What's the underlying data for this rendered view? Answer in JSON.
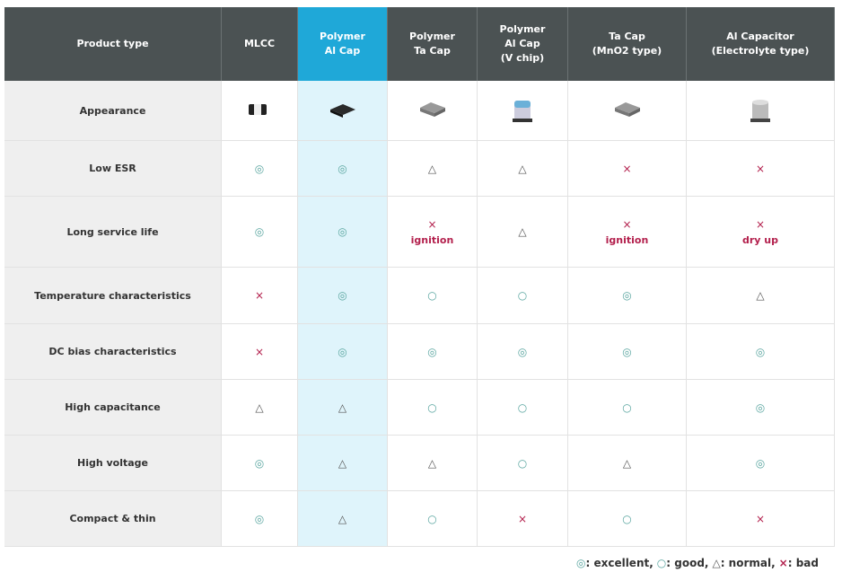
{
  "table": {
    "headers": [
      "Product type",
      "MLCC",
      "Polymer\nAl Cap",
      "Polymer\nTa Cap",
      "Polymer\nAl Cap\n(V chip)",
      "Ta Cap\n(MnO2 type)",
      "Al Capacitor\n(Electrolyte type)"
    ],
    "appearance_label": "Appearance",
    "rows": [
      {
        "label": "Low ESR",
        "cells": [
          {
            "mark": "◎"
          },
          {
            "mark": "◎"
          },
          {
            "mark": "△"
          },
          {
            "mark": "△"
          },
          {
            "mark": "×"
          },
          {
            "mark": "×"
          }
        ]
      },
      {
        "label": "Long service life",
        "cells": [
          {
            "mark": "◎"
          },
          {
            "mark": "◎"
          },
          {
            "mark": "×",
            "note": "ignition"
          },
          {
            "mark": "△"
          },
          {
            "mark": "×",
            "note": "ignition"
          },
          {
            "mark": "×",
            "note": "dry up"
          }
        ]
      },
      {
        "label": "Temperature characteristics",
        "cells": [
          {
            "mark": "×"
          },
          {
            "mark": "◎"
          },
          {
            "mark": "○"
          },
          {
            "mark": "○"
          },
          {
            "mark": "◎"
          },
          {
            "mark": "△"
          }
        ]
      },
      {
        "label": "DC bias characteristics",
        "cells": [
          {
            "mark": "×"
          },
          {
            "mark": "◎"
          },
          {
            "mark": "◎"
          },
          {
            "mark": "◎"
          },
          {
            "mark": "◎"
          },
          {
            "mark": "◎"
          }
        ]
      },
      {
        "label": "High capacitance",
        "cells": [
          {
            "mark": "△"
          },
          {
            "mark": "△"
          },
          {
            "mark": "○"
          },
          {
            "mark": "○"
          },
          {
            "mark": "○"
          },
          {
            "mark": "◎"
          }
        ]
      },
      {
        "label": "High voltage",
        "cells": [
          {
            "mark": "◎"
          },
          {
            "mark": "△"
          },
          {
            "mark": "△"
          },
          {
            "mark": "○"
          },
          {
            "mark": "△"
          },
          {
            "mark": "◎"
          }
        ]
      },
      {
        "label": "Compact & thin",
        "cells": [
          {
            "mark": "◎"
          },
          {
            "mark": "△"
          },
          {
            "mark": "○"
          },
          {
            "mark": "×"
          },
          {
            "mark": "○"
          },
          {
            "mark": "×"
          }
        ]
      }
    ]
  },
  "legend": [
    {
      "symbol": "◎",
      "text": ": excellent,"
    },
    {
      "symbol": "○",
      "text": ": good,"
    },
    {
      "symbol": "△",
      "text": ": normal,"
    },
    {
      "symbol": "×",
      "text": ": bad"
    }
  ]
}
